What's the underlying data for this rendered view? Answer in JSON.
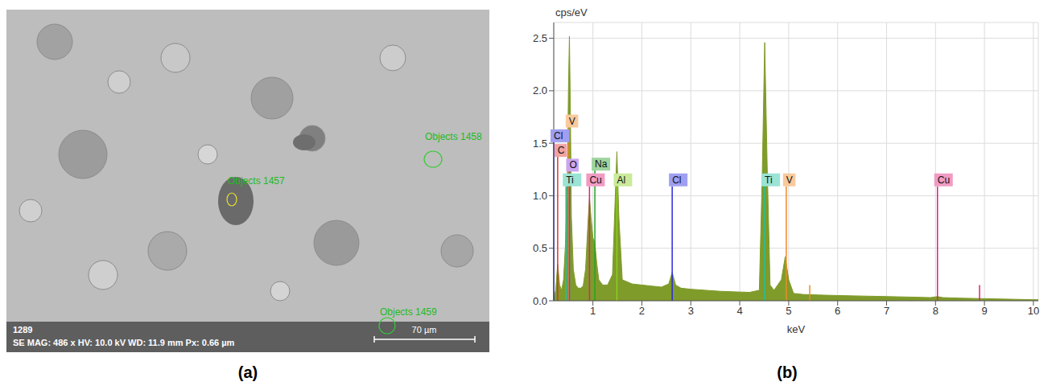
{
  "panel_a": {
    "type": "image",
    "letter": "(a)",
    "info_lines": [
      "1289",
      "SE MAG: 486 x HV: 10.0 kV WD: 11.9 mm Px: 0.66 µm"
    ],
    "scale_bar": "70 µm",
    "regions": [
      {
        "label": "Objects 1458",
        "color": "#33cc33"
      },
      {
        "label": "Objects 1457",
        "color": "#e8e030"
      },
      {
        "label": "Objects 1459",
        "color": "#33cc33"
      }
    ]
  },
  "chart_data": {
    "type": "area",
    "letter": "(b)",
    "y_label": "cps/eV",
    "x_label": "keV",
    "color": "#7f9b2a",
    "grid": true,
    "xlim": [
      0.2,
      10.1
    ],
    "xticks": [
      1,
      2,
      3,
      4,
      5,
      6,
      7,
      8,
      9,
      10
    ],
    "ylim": [
      0,
      2.65
    ],
    "yticks": [
      {
        "value": 0,
        "label": "0.0"
      },
      {
        "value": 0.5,
        "label": "0.5"
      },
      {
        "value": 1,
        "label": "1.0"
      },
      {
        "value": 1.5,
        "label": "1.5"
      },
      {
        "value": 2,
        "label": "2.0"
      },
      {
        "value": 2.5,
        "label": "2.5"
      }
    ],
    "x": [
      0.2,
      0.24,
      0.28,
      0.32,
      0.36,
      0.4,
      0.44,
      0.48,
      0.5,
      0.52,
      0.54,
      0.56,
      0.6,
      0.65,
      0.7,
      0.75,
      0.8,
      0.85,
      0.9,
      0.93,
      0.96,
      1.0,
      1.04,
      1.08,
      1.12,
      1.2,
      1.3,
      1.4,
      1.45,
      1.49,
      1.53,
      1.6,
      1.8,
      2.0,
      2.2,
      2.4,
      2.55,
      2.62,
      2.69,
      2.8,
      3.0,
      3.3,
      3.6,
      3.9,
      4.2,
      4.4,
      4.46,
      4.51,
      4.56,
      4.62,
      4.7,
      4.85,
      4.93,
      5.0,
      5.1,
      5.3,
      5.6,
      6.0,
      6.5,
      7.0,
      7.5,
      7.9,
      8.04,
      8.15,
      8.5,
      9.0,
      9.5,
      10.0,
      10.1
    ],
    "values": [
      0.02,
      0.1,
      0.35,
      0.15,
      0.1,
      0.2,
      0.55,
      1.2,
      2.0,
      2.52,
      1.8,
      0.8,
      0.3,
      0.15,
      0.12,
      0.12,
      0.14,
      0.3,
      0.75,
      0.98,
      0.8,
      0.6,
      0.55,
      0.35,
      0.2,
      0.15,
      0.15,
      0.25,
      0.9,
      1.42,
      0.8,
      0.2,
      0.16,
      0.15,
      0.14,
      0.13,
      0.16,
      0.27,
      0.15,
      0.12,
      0.11,
      0.1,
      0.09,
      0.085,
      0.08,
      0.1,
      1.2,
      2.46,
      1.3,
      0.15,
      0.1,
      0.2,
      0.42,
      0.2,
      0.07,
      0.06,
      0.055,
      0.05,
      0.045,
      0.04,
      0.035,
      0.03,
      0.04,
      0.03,
      0.025,
      0.02,
      0.015,
      0.01,
      0.01
    ],
    "annotations": [
      {
        "label": "V",
        "x": 0.51,
        "y": 1.65,
        "color": "#f08a24"
      },
      {
        "label": "Cl",
        "x": 0.2,
        "y": 1.51,
        "color": "#2a2ae0"
      },
      {
        "label": "C",
        "x": 0.28,
        "y": 1.37,
        "color": "#e03030"
      },
      {
        "label": "O",
        "x": 0.52,
        "y": 1.23,
        "color": "#8a3ae0"
      },
      {
        "label": "Na",
        "x": 1.04,
        "y": 1.24,
        "color": "#2aa02a"
      },
      {
        "label": "Ti",
        "x": 0.45,
        "y": 1.09,
        "color": "#20c0a0"
      },
      {
        "label": "Cu",
        "x": 0.93,
        "y": 1.09,
        "color": "#e0207a"
      },
      {
        "label": "Al",
        "x": 1.49,
        "y": 1.09,
        "color": "#8ad020"
      },
      {
        "label": "Cl",
        "x": 2.62,
        "y": 1.09,
        "color": "#2a2ae0"
      },
      {
        "label": "Ti",
        "x": 4.51,
        "y": 1.09,
        "color": "#20c0a0"
      },
      {
        "label": "V",
        "x": 4.95,
        "y": 1.09,
        "color": "#f08a24"
      },
      {
        "label": "Cu",
        "x": 8.04,
        "y": 1.09,
        "color": "#e0207a"
      }
    ],
    "markers": [
      {
        "x": 5.43,
        "y": 0.15,
        "color": "#f08a24"
      },
      {
        "x": 8.9,
        "y": 0.15,
        "color": "#e0207a"
      }
    ]
  }
}
